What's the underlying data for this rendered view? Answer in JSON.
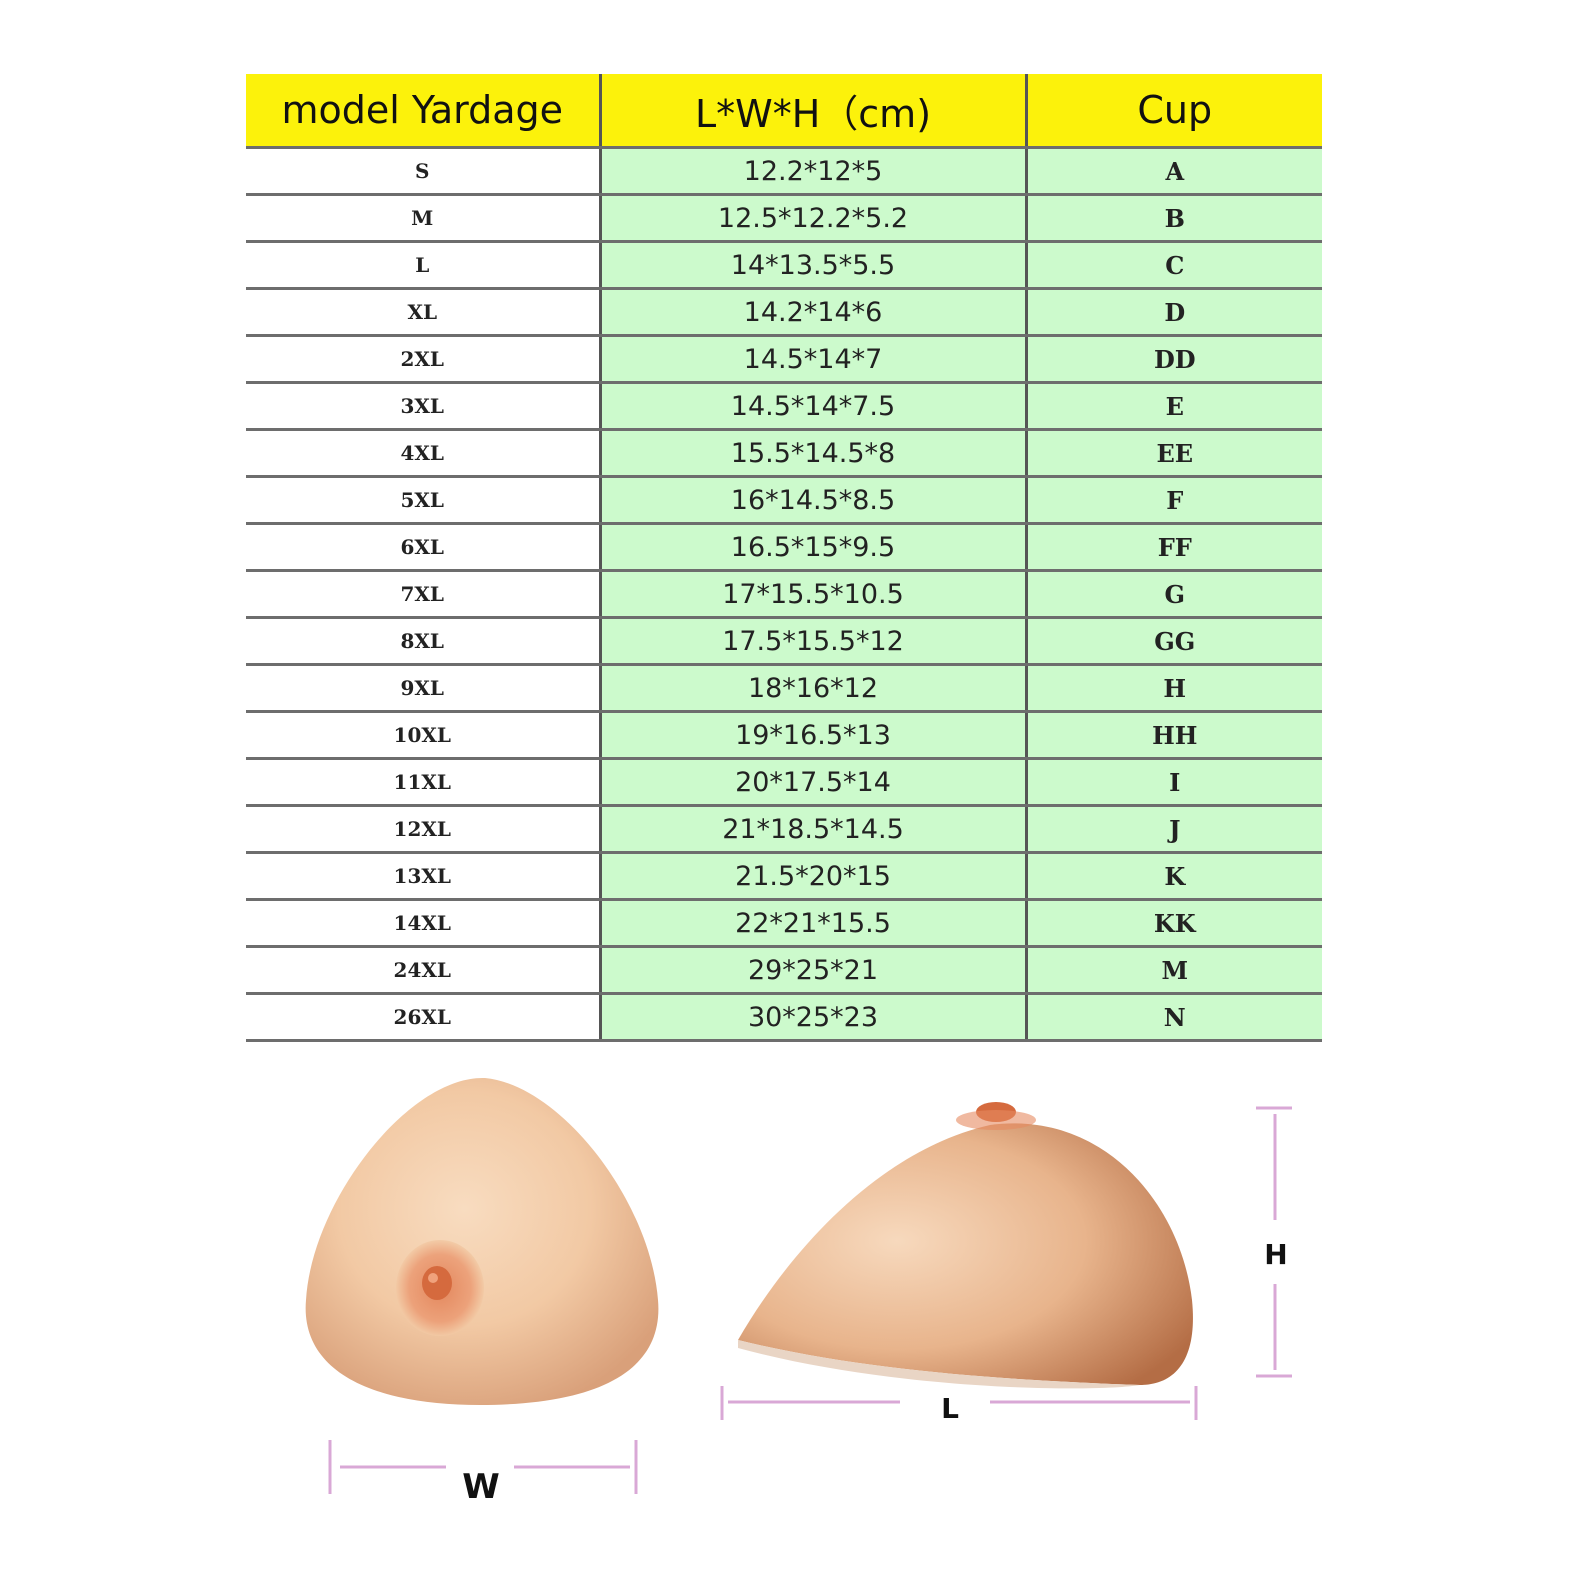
{
  "table": {
    "headers": [
      "model Yardage",
      "L*W*H（cm)",
      "Cup"
    ],
    "rows": [
      [
        "S",
        "12.2*12*5",
        "A"
      ],
      [
        "M",
        "12.5*12.2*5.2",
        "B"
      ],
      [
        "L",
        "14*13.5*5.5",
        "C"
      ],
      [
        "XL",
        "14.2*14*6",
        "D"
      ],
      [
        "2XL",
        "14.5*14*7",
        "DD"
      ],
      [
        "3XL",
        "14.5*14*7.5",
        "E"
      ],
      [
        "4XL",
        "15.5*14.5*8",
        "EE"
      ],
      [
        "5XL",
        "16*14.5*8.5",
        "F"
      ],
      [
        "6XL",
        "16.5*15*9.5",
        "FF"
      ],
      [
        "7XL",
        "17*15.5*10.5",
        "G"
      ],
      [
        "8XL",
        "17.5*15.5*12",
        "GG"
      ],
      [
        "9XL",
        "18*16*12",
        "H"
      ],
      [
        "10XL",
        "19*16.5*13",
        "HH"
      ],
      [
        "11XL",
        "20*17.5*14",
        "I"
      ],
      [
        "12XL",
        "21*18.5*14.5",
        "J"
      ],
      [
        "13XL",
        "21.5*20*15",
        "K"
      ],
      [
        "14XL",
        "22*21*15.5",
        "KK"
      ],
      [
        "24XL",
        "29*25*21",
        "M"
      ],
      [
        "26XL",
        "30*25*23",
        "N"
      ]
    ]
  },
  "dimensions": {
    "width_label": "W",
    "length_label": "L",
    "height_label": "H"
  },
  "colors": {
    "header_bg": "#fcf20b",
    "cell_green": "#ccfacc",
    "dimension_line": "#d9a8d6",
    "skin": "#f2c9a4",
    "areola": "#e68a60"
  }
}
